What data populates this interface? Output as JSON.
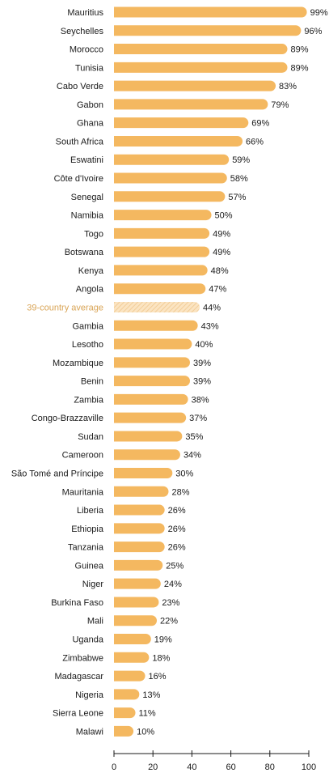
{
  "chart_data": {
    "type": "bar",
    "orientation": "horizontal",
    "title": "",
    "xlabel": "",
    "ylabel": "",
    "xlim": [
      0,
      100
    ],
    "x_ticks": [
      0,
      20,
      40,
      60,
      80,
      100
    ],
    "grid": false,
    "value_suffix": "%",
    "highlight_category": "39-country average",
    "colors": {
      "bar": "#f4b860",
      "average_bar": "#fbe4c2",
      "average_hatch": "#f0c88e",
      "average_label": "#d9a455",
      "text": "#1a1a1a",
      "axis": "#1a1a1a"
    },
    "categories": [
      "Mauritius",
      "Seychelles",
      "Morocco",
      "Tunisia",
      "Cabo Verde",
      "Gabon",
      "Ghana",
      "South Africa",
      "Eswatini",
      "Côte d'Ivoire",
      "Senegal",
      "Namibia",
      "Togo",
      "Botswana",
      "Kenya",
      "Angola",
      "39-country average",
      "Gambia",
      "Lesotho",
      "Mozambique",
      "Benin",
      "Zambia",
      "Congo-Brazzaville",
      "Sudan",
      "Cameroon",
      "São Tomé and Príncipe",
      "Mauritania",
      "Liberia",
      "Ethiopia",
      "Tanzania",
      "Guinea",
      "Niger",
      "Burkina Faso",
      "Mali",
      "Uganda",
      "Zimbabwe",
      "Madagascar",
      "Nigeria",
      "Sierra Leone",
      "Malawi"
    ],
    "values": [
      99,
      96,
      89,
      89,
      83,
      79,
      69,
      66,
      59,
      58,
      57,
      50,
      49,
      49,
      48,
      47,
      44,
      43,
      40,
      39,
      39,
      38,
      37,
      35,
      34,
      30,
      28,
      26,
      26,
      26,
      25,
      24,
      23,
      22,
      19,
      18,
      16,
      13,
      11,
      10
    ]
  }
}
